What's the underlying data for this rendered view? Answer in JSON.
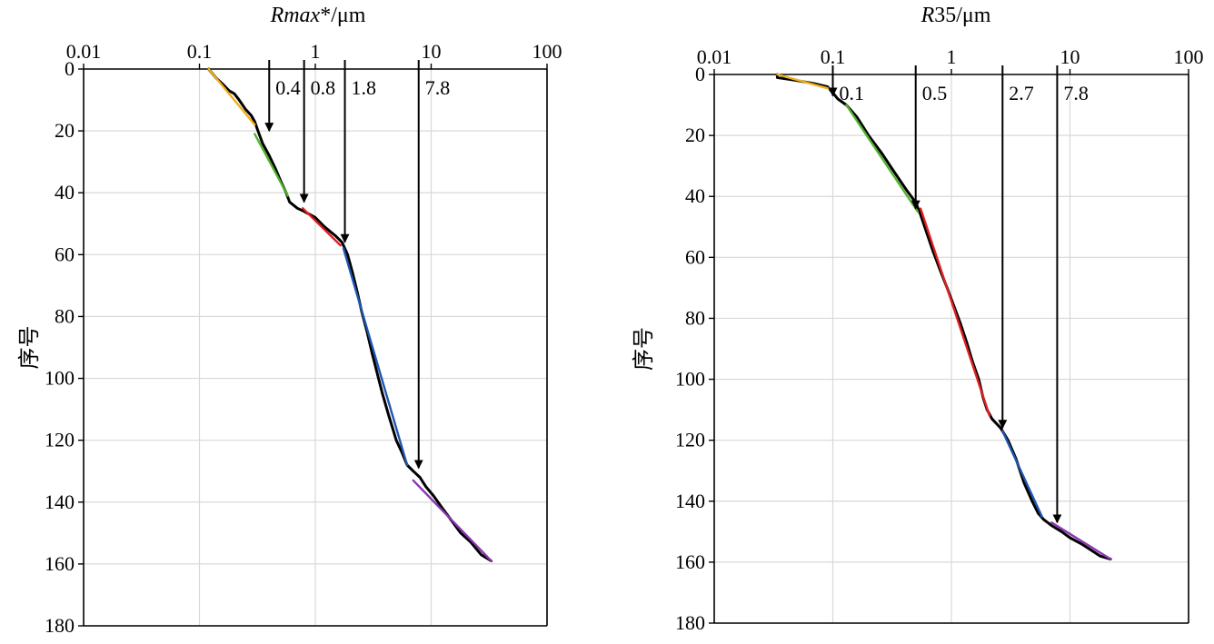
{
  "chart_data": [
    {
      "type": "line",
      "xlabel": "Rmax*/μm",
      "xlabel_italic": "Rmax",
      "xlabel_rest": "*/μm",
      "ylabel": "序号",
      "xscale": "log",
      "xlim": [
        0.01,
        100
      ],
      "ylim": [
        0,
        180
      ],
      "y_inverted": true,
      "xticks": [
        "0.01",
        "0.1",
        "1",
        "10",
        "100"
      ],
      "xtick_values": [
        0.01,
        0.1,
        1,
        10,
        100
      ],
      "yticks": [
        "0",
        "20",
        "40",
        "60",
        "80",
        "100",
        "120",
        "140",
        "160",
        "180"
      ],
      "ytick_values": [
        0,
        20,
        40,
        60,
        80,
        100,
        120,
        140,
        160,
        180
      ],
      "grid": true,
      "series": [
        {
          "color": "#000000",
          "points": [
            [
              0.12,
              0
            ],
            [
              0.14,
              3
            ],
            [
              0.16,
              5
            ],
            [
              0.18,
              7
            ],
            [
              0.2,
              8
            ],
            [
              0.22,
              10
            ],
            [
              0.25,
              13
            ],
            [
              0.28,
              15
            ],
            [
              0.3,
              17
            ],
            [
              0.32,
              20
            ],
            [
              0.35,
              24
            ],
            [
              0.4,
              28
            ],
            [
              0.45,
              32
            ],
            [
              0.5,
              36
            ],
            [
              0.56,
              40
            ],
            [
              0.6,
              43
            ],
            [
              0.7,
              45
            ],
            [
              0.8,
              46
            ],
            [
              1.0,
              48
            ],
            [
              1.2,
              51
            ],
            [
              1.5,
              54
            ],
            [
              1.7,
              56
            ],
            [
              1.9,
              60
            ],
            [
              2.1,
              66
            ],
            [
              2.3,
              72
            ],
            [
              2.5,
              78
            ],
            [
              2.8,
              85
            ],
            [
              3.1,
              92
            ],
            [
              3.4,
              98
            ],
            [
              3.8,
              105
            ],
            [
              4.3,
              112
            ],
            [
              5.0,
              120
            ],
            [
              5.6,
              124
            ],
            [
              6.2,
              128
            ],
            [
              7.0,
              130
            ],
            [
              8.0,
              132
            ],
            [
              9.0,
              135
            ],
            [
              10.5,
              138
            ],
            [
              12.5,
              142
            ],
            [
              15.0,
              146
            ],
            [
              18.0,
              150
            ],
            [
              22.0,
              153
            ],
            [
              27.0,
              157
            ],
            [
              33.0,
              159
            ]
          ]
        },
        {
          "color": "#f0b01c",
          "points": [
            [
              0.12,
              0
            ],
            [
              0.3,
              18
            ]
          ]
        },
        {
          "color": "#52b230",
          "points": [
            [
              0.3,
              21
            ],
            [
              0.58,
              41
            ]
          ]
        },
        {
          "color": "#e02020",
          "points": [
            [
              0.78,
              45
            ],
            [
              1.65,
              57
            ]
          ]
        },
        {
          "color": "#1f56b0",
          "points": [
            [
              1.75,
              58
            ],
            [
              6.2,
              128
            ]
          ]
        },
        {
          "color": "#8a35b5",
          "points": [
            [
              7.0,
              133
            ],
            [
              33.0,
              159
            ]
          ]
        }
      ],
      "markers": [
        {
          "x": 0.4,
          "label": "0.4",
          "y_end": 20
        },
        {
          "x": 0.8,
          "label": "0.8",
          "y_end": 43
        },
        {
          "x": 1.8,
          "label": "1.8",
          "y_end": 56
        },
        {
          "x": 7.8,
          "label": "7.8",
          "y_end": 129
        }
      ]
    },
    {
      "type": "line",
      "xlabel": "R35/μm",
      "xlabel_italic": "R",
      "xlabel_rest": "35/μm",
      "ylabel": "序号",
      "xscale": "log",
      "xlim": [
        0.01,
        100
      ],
      "ylim": [
        0,
        180
      ],
      "y_inverted": true,
      "xticks": [
        "0.01",
        "0.1",
        "1",
        "10",
        "100"
      ],
      "xtick_values": [
        0.01,
        0.1,
        1,
        10,
        100
      ],
      "yticks": [
        "0",
        "20",
        "40",
        "60",
        "80",
        "100",
        "120",
        "140",
        "160",
        "180"
      ],
      "ytick_values": [
        0,
        20,
        40,
        60,
        80,
        100,
        120,
        140,
        160,
        180
      ],
      "grid": true,
      "series": [
        {
          "color": "#000000",
          "points": [
            [
              0.034,
              0
            ],
            [
              0.034,
              1
            ],
            [
              0.05,
              2
            ],
            [
              0.07,
              3
            ],
            [
              0.09,
              4
            ],
            [
              0.1,
              6
            ],
            [
              0.11,
              8
            ],
            [
              0.13,
              10
            ],
            [
              0.16,
              14
            ],
            [
              0.2,
              20
            ],
            [
              0.26,
              26
            ],
            [
              0.33,
              32
            ],
            [
              0.42,
              38
            ],
            [
              0.5,
              42
            ],
            [
              0.55,
              46
            ],
            [
              0.62,
              52
            ],
            [
              0.7,
              58
            ],
            [
              0.8,
              64
            ],
            [
              0.92,
              70
            ],
            [
              1.05,
              76
            ],
            [
              1.2,
              82
            ],
            [
              1.35,
              88
            ],
            [
              1.5,
              94
            ],
            [
              1.7,
              100
            ],
            [
              1.85,
              106
            ],
            [
              2.0,
              110
            ],
            [
              2.2,
              113
            ],
            [
              2.6,
              116
            ],
            [
              3.0,
              120
            ],
            [
              3.5,
              126
            ],
            [
              4.1,
              134
            ],
            [
              4.8,
              140
            ],
            [
              5.4,
              144
            ],
            [
              6.0,
              146
            ],
            [
              7.0,
              148
            ],
            [
              8.5,
              150
            ],
            [
              10.0,
              152
            ],
            [
              12.5,
              154
            ],
            [
              15.0,
              156
            ],
            [
              18.0,
              158
            ],
            [
              22.0,
              159
            ]
          ]
        },
        {
          "color": "#f0b01c",
          "points": [
            [
              0.034,
              0
            ],
            [
              0.1,
              5
            ]
          ]
        },
        {
          "color": "#52b230",
          "points": [
            [
              0.13,
              10
            ],
            [
              0.52,
              45
            ]
          ]
        },
        {
          "color": "#e02020",
          "points": [
            [
              0.55,
              44
            ],
            [
              2.1,
              112
            ]
          ]
        },
        {
          "color": "#1f56b0",
          "points": [
            [
              2.7,
              117
            ],
            [
              5.8,
              145
            ]
          ]
        },
        {
          "color": "#8a35b5",
          "points": [
            [
              7.0,
              147
            ],
            [
              22.0,
              159
            ]
          ]
        }
      ],
      "markers": [
        {
          "x": 0.1,
          "label": "0.1",
          "y_end": 7
        },
        {
          "x": 0.5,
          "label": "0.5",
          "y_end": 44
        },
        {
          "x": 2.7,
          "label": "2.7",
          "y_end": 116
        },
        {
          "x": 7.8,
          "label": "7.8",
          "y_end": 147
        }
      ]
    }
  ]
}
